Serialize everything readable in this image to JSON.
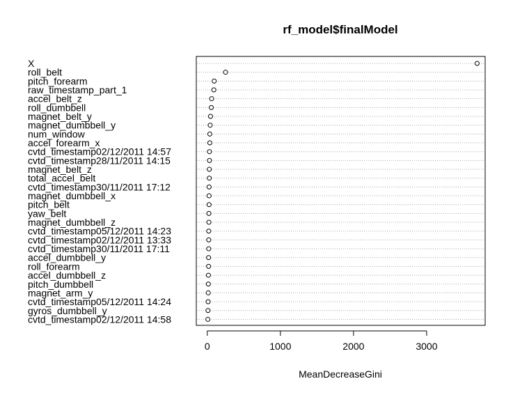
{
  "chart_data": {
    "type": "scatter",
    "title": "rf_model$finalModel",
    "xlabel": "MeanDecreaseGini",
    "ylabel": "",
    "xlim": [
      -150,
      3800
    ],
    "xticks": [
      0,
      1000,
      2000,
      3000
    ],
    "xtick_labels": [
      "0",
      "1000",
      "2000",
      "3000"
    ],
    "grid": "dotted horizontal lines per row",
    "marker": "open circle",
    "categories": [
      "X",
      "roll_belt",
      "pitch_forearm",
      "raw_timestamp_part_1",
      "accel_belt_z",
      "roll_dumbbell",
      "magnet_belt_y",
      "magnet_dumbbell_y",
      "num_window",
      "accel_forearm_x",
      "cvtd_timestamp02/12/2011 14:57",
      "cvtd_timestamp28/11/2011 14:15",
      "magnet_belt_z",
      "total_accel_belt",
      "cvtd_timestamp30/11/2011 17:12",
      "magnet_dumbbell_x",
      "pitch_belt",
      "yaw_belt",
      "magnet_dumbbell_z",
      "cvtd_timestamp05/12/2011 14:23",
      "cvtd_timestamp02/12/2011 13:33",
      "cvtd_timestamp30/11/2011 17:11",
      "accel_dumbbell_y",
      "roll_forearm",
      "accel_dumbbell_z",
      "pitch_dumbbell",
      "magnet_arm_y",
      "cvtd_timestamp05/12/2011 14:24",
      "gyros_dumbbell_y",
      "cvtd_timestamp02/12/2011 14:58"
    ],
    "values": [
      3690,
      250,
      95,
      90,
      60,
      55,
      45,
      40,
      35,
      35,
      30,
      30,
      28,
      28,
      25,
      25,
      25,
      22,
      22,
      20,
      20,
      20,
      18,
      18,
      16,
      15,
      14,
      12,
      10,
      8
    ]
  }
}
